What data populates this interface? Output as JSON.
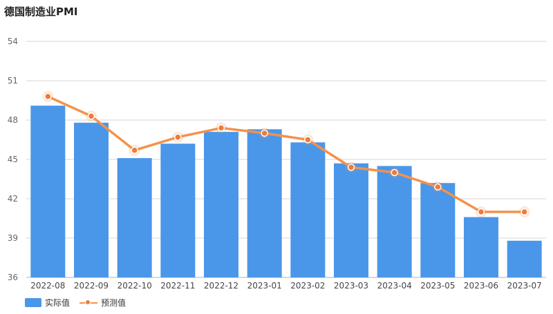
{
  "title": "德国制造业PMI",
  "colors": {
    "bar": "#4a97ea",
    "line": "#f5914a",
    "dot": "#ee7b3a",
    "grid": "#d4d4d4",
    "axis_text": "#666666"
  },
  "chart_data": {
    "type": "bar",
    "title": "德国制造业PMI",
    "categories": [
      "2022-08",
      "2022-09",
      "2022-10",
      "2022-11",
      "2022-12",
      "2023-01",
      "2023-02",
      "2023-03",
      "2023-04",
      "2023-05",
      "2023-06",
      "2023-07"
    ],
    "series": [
      {
        "name": "实际值",
        "type": "bar",
        "values": [
          49.1,
          47.8,
          45.1,
          46.2,
          47.1,
          47.3,
          46.3,
          44.7,
          44.5,
          43.2,
          40.6,
          38.8
        ]
      },
      {
        "name": "预测值",
        "type": "line",
        "values": [
          49.8,
          48.3,
          45.7,
          46.7,
          47.4,
          47.0,
          46.5,
          44.4,
          44.0,
          42.9,
          41.0,
          41.0
        ]
      }
    ],
    "ylim": [
      36,
      54
    ],
    "yticks": [
      36,
      39,
      42,
      45,
      48,
      51,
      54
    ],
    "grid": true,
    "legend_position": "bottom-left"
  }
}
